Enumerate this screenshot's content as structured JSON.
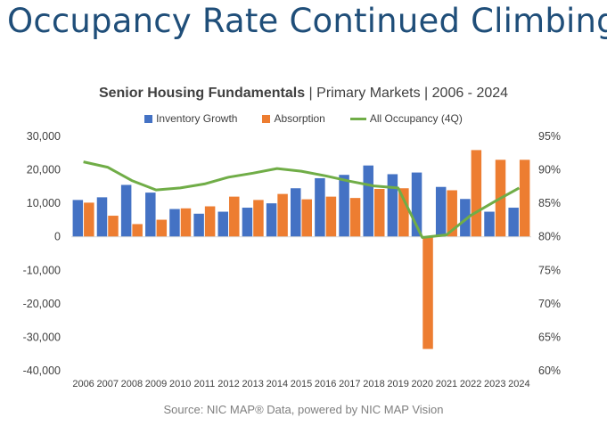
{
  "headline": "Occupancy Rate Continued Climbing",
  "chart_title_bold": "Senior Housing Fundamentals",
  "chart_title_rest": " | Primary Markets | 2006 - 2024",
  "source": "Source: NIC MAP® Data, powered by NIC MAP Vision",
  "colors": {
    "inventory": "#4472c4",
    "absorption": "#ed7d31",
    "occupancy": "#70ad47",
    "headline": "#1f4e79"
  },
  "chart_data": {
    "type": "bar",
    "categories": [
      "2006",
      "2007",
      "2008",
      "2009",
      "2010",
      "2011",
      "2012",
      "2013",
      "2014",
      "2015",
      "2016",
      "2017",
      "2018",
      "2019",
      "2020",
      "2021",
      "2022",
      "2023",
      "2024"
    ],
    "series": [
      {
        "name": "Inventory Growth",
        "type": "bar",
        "axis": "left",
        "values": [
          11000,
          11800,
          15500,
          13200,
          8300,
          6900,
          7500,
          8700,
          10000,
          14500,
          17500,
          18500,
          21300,
          18700,
          19200,
          14900,
          11300,
          7500,
          8700
        ]
      },
      {
        "name": "Absorption",
        "type": "bar",
        "axis": "left",
        "values": [
          10200,
          6300,
          3800,
          5100,
          8500,
          9100,
          12000,
          11000,
          12800,
          11200,
          12000,
          11600,
          14300,
          14500,
          -33500,
          13900,
          25900,
          23000,
          23000
        ]
      },
      {
        "name": "All Occupancy (4Q)",
        "type": "line",
        "axis": "right",
        "values": [
          91.2,
          90.4,
          88.4,
          87.0,
          87.3,
          87.9,
          88.9,
          89.5,
          90.2,
          89.8,
          89.1,
          88.3,
          87.6,
          87.3,
          79.9,
          80.3,
          83.2,
          85.3,
          87.3
        ]
      }
    ],
    "y_left": {
      "min": -40000,
      "max": 30000,
      "step": 10000,
      "ticks": [
        "-40,000",
        "-30,000",
        "-20,000",
        "-10,000",
        "0",
        "10,000",
        "20,000",
        "30,000"
      ]
    },
    "y_right": {
      "min": 60,
      "max": 95,
      "step": 5,
      "ticks": [
        "60%",
        "65%",
        "70%",
        "75%",
        "80%",
        "85%",
        "90%",
        "95%"
      ]
    },
    "grid": false,
    "legend_position": "top"
  }
}
